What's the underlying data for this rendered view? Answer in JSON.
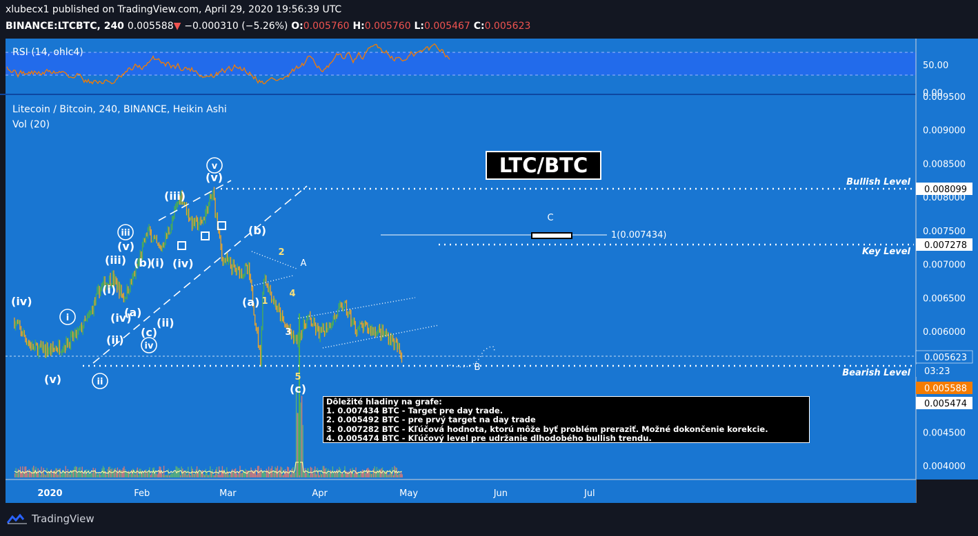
{
  "header": {
    "publisher": "xlubecx1 published on TradingView.com, April 29, 2020 19:56:39 UTC",
    "symbol": "BINANCE:LTCBTC, 240",
    "last": "0.005588",
    "change_arrow": "▼",
    "change": "−0.000310 (−5.26%)",
    "o_label": "O:",
    "o_value": "0.005760",
    "h_label": "H:",
    "h_value": "0.005760",
    "l_label": "L:",
    "l_value": "0.005467",
    "c_label": "C:",
    "c_value": "0.005623"
  },
  "rsi_panel": {
    "label": "RSI (14, ohlc4)",
    "tick_50": "50.00",
    "tick_0": "0.00"
  },
  "main_panel": {
    "legend_title": "Litecoin / Bitcoin, 240, BINANCE, Heikin Ashi",
    "legend_vol": "Vol (20)",
    "title_box": "LTC/BTC"
  },
  "levels": {
    "bullish": "Bullish Level",
    "key": "Key Level",
    "bearish": "Bearish Level",
    "fib": "1(0.007434)",
    "c_mark": "C"
  },
  "price_badges": {
    "bullish": "0.008099",
    "key": "0.007278",
    "close": "0.005623",
    "timer": "03:23",
    "last": "0.005588",
    "bearish": "0.005474"
  },
  "notes": {
    "title": "Dôležité hladiny na grafe:",
    "items": [
      "1. 0.007434 BTC - Target pre day trade.",
      "2. 0.005492 BTC - pre prvý target na day trade",
      "3. 0.007282 BTC - Kľúčová hodnota, ktorú môže byť problém preraziť. Možné dokončenie korekcie.",
      "4. 0.005474 BTC - Kľúčový level pre udržanie dlhodobého bullish trendu."
    ]
  },
  "wave_labels": {
    "iv_left": "(iv)",
    "v_left": "(v)",
    "i_circ": "i",
    "ii_circ": "ii",
    "i_p": "(i)",
    "ii_p": "(ii)",
    "iii_p": "(iii)",
    "iv_p": "(iv)",
    "v_p": "(v)",
    "iii_circ": "iii",
    "iv_circ": "iv",
    "v_circ": "v",
    "a_p": "(a)",
    "b_p": "(b)",
    "c_p": "(c)",
    "i_p2": "(i)",
    "ii_p2": "(ii)",
    "iii_p2": "(iii)",
    "iv_p2": "(iv)",
    "v_p2": "(v)",
    "a2": "(a)",
    "b2": "(b)",
    "c2": "(c)",
    "n1": "1",
    "n2": "2",
    "n3": "3",
    "n4": "4",
    "n5": "5",
    "A": "A",
    "B": "B"
  },
  "brand": "TradingView",
  "chart_data": {
    "type": "line",
    "title": "Litecoin / Bitcoin, 240, BINANCE, Heikin Ashi",
    "x_ticks": [
      "2020",
      "Feb",
      "Mar",
      "Apr",
      "May",
      "Jun",
      "Jul"
    ],
    "y_ticks": [
      "0.009500",
      "0.009000",
      "0.008500",
      "0.008000",
      "0.007500",
      "0.007000",
      "0.006500",
      "0.006000",
      "0.004500",
      "0.004000"
    ],
    "ylim": [
      0.0038,
      0.0096
    ],
    "series": [
      {
        "x": [
          "2019-12-20",
          "2019-12-26",
          "2020-01-01",
          "2020-01-06",
          "2020-01-10",
          "2020-01-14",
          "2020-01-18",
          "2020-01-22",
          "2020-01-26",
          "2020-01-30",
          "2020-02-03",
          "2020-02-07",
          "2020-02-11",
          "2020-02-14",
          "2020-02-18",
          "2020-02-21",
          "2020-02-25",
          "2020-02-28",
          "2020-03-04",
          "2020-03-08",
          "2020-03-12",
          "2020-03-13",
          "2020-03-16",
          "2020-03-20",
          "2020-03-24",
          "2020-03-28",
          "2020-04-01",
          "2020-04-05",
          "2020-04-09",
          "2020-04-13",
          "2020-04-17",
          "2020-04-21",
          "2020-04-25",
          "2020-04-29"
        ],
        "values": [
          0.00615,
          0.00575,
          0.00572,
          0.0058,
          0.00595,
          0.0062,
          0.00665,
          0.0068,
          0.0065,
          0.0069,
          0.0075,
          0.0072,
          0.0076,
          0.00805,
          0.0076,
          0.0076,
          0.00805,
          0.0071,
          0.0069,
          0.0069,
          0.0056,
          0.00685,
          0.0065,
          0.0061,
          0.00585,
          0.0062,
          0.00595,
          0.00615,
          0.0064,
          0.00605,
          0.00605,
          0.006,
          0.0059,
          0.00562
        ]
      }
    ],
    "levels": {
      "bullish": 0.008099,
      "key": 0.007278,
      "close": 0.005623,
      "bearish": 0.005474,
      "fib_target": 0.007434
    },
    "legend": "none",
    "grid": false
  },
  "colors": {
    "background": "#1976d2",
    "rsi_bg": "#2962ff",
    "candle_up": "#4caf50",
    "candle_down": "#f5a623",
    "last_badge": "#f57c00",
    "rsi_line": "#f57c00"
  }
}
